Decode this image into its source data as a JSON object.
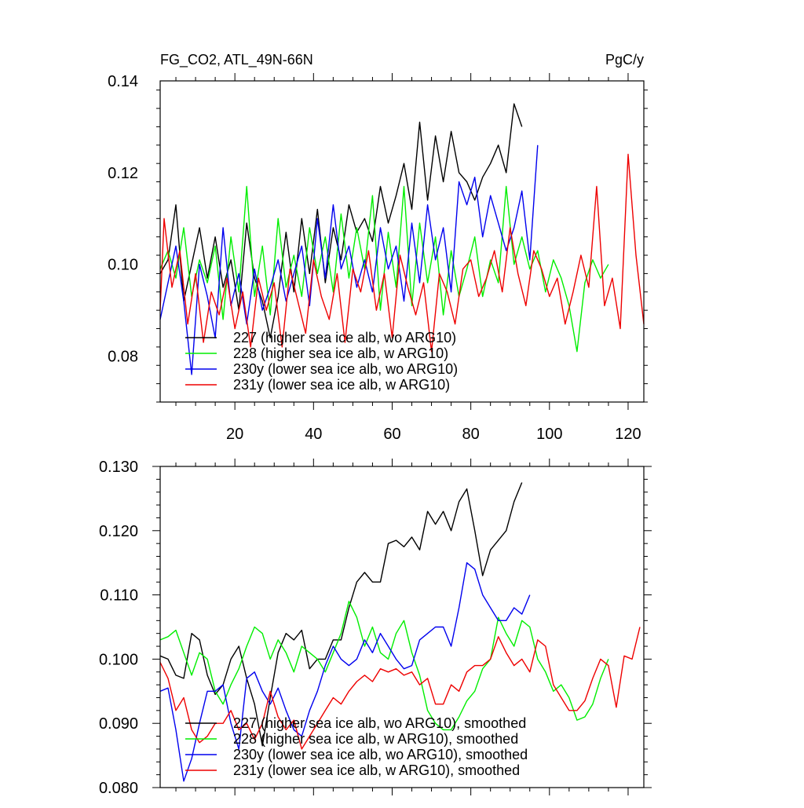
{
  "chart_data": [
    {
      "type": "line",
      "title_left": "FG_CO2, ATL_49N-66N",
      "title_right": "PgC/y",
      "xlim": [
        1,
        124
      ],
      "ylim": [
        0.07,
        0.14
      ],
      "x_ticks": [
        20,
        40,
        60,
        80,
        100,
        120
      ],
      "x_tick_labels": [
        "20",
        "40",
        "60",
        "80",
        "100",
        "120"
      ],
      "y_ticks": [
        0.08,
        0.1,
        0.12,
        0.14
      ],
      "y_tick_labels": [
        "0.08",
        "0.10",
        "0.12",
        "0.14"
      ],
      "legend_position": "lower-left",
      "series": [
        {
          "name": "227 (higher sea ice alb, wo ARG10)",
          "color": "#000000",
          "x": [
            1,
            3,
            5,
            7,
            9,
            11,
            13,
            15,
            17,
            19,
            21,
            23,
            25,
            27,
            29,
            31,
            33,
            35,
            37,
            39,
            41,
            43,
            45,
            47,
            49,
            51,
            53,
            55,
            57,
            59,
            61,
            63,
            65,
            67,
            69,
            71,
            73,
            75,
            77,
            79,
            81,
            83,
            85,
            87,
            89,
            91,
            93
          ],
          "values": [
            0.098,
            0.101,
            0.113,
            0.092,
            0.1,
            0.108,
            0.097,
            0.106,
            0.095,
            0.101,
            0.09,
            0.109,
            0.097,
            0.092,
            0.084,
            0.093,
            0.107,
            0.094,
            0.11,
            0.098,
            0.112,
            0.096,
            0.108,
            0.101,
            0.113,
            0.107,
            0.11,
            0.105,
            0.117,
            0.109,
            0.115,
            0.122,
            0.112,
            0.131,
            0.114,
            0.128,
            0.118,
            0.129,
            0.12,
            0.118,
            0.114,
            0.119,
            0.122,
            0.126,
            0.12,
            0.135,
            0.13
          ]
        },
        {
          "name": "228 (higher sea ice alb, w ARG10)",
          "color": "#00ee00",
          "x": [
            1,
            3,
            5,
            7,
            9,
            11,
            13,
            15,
            17,
            19,
            21,
            23,
            25,
            27,
            29,
            31,
            33,
            35,
            37,
            39,
            41,
            43,
            45,
            47,
            49,
            51,
            53,
            55,
            57,
            59,
            61,
            63,
            65,
            67,
            69,
            71,
            73,
            75,
            77,
            79,
            81,
            83,
            85,
            87,
            89,
            91,
            93,
            95,
            97,
            99,
            101,
            103,
            105,
            107,
            109,
            111,
            113,
            115
          ],
          "values": [
            0.099,
            0.103,
            0.097,
            0.108,
            0.093,
            0.101,
            0.096,
            0.104,
            0.088,
            0.106,
            0.094,
            0.117,
            0.093,
            0.104,
            0.089,
            0.11,
            0.095,
            0.102,
            0.093,
            0.108,
            0.098,
            0.106,
            0.094,
            0.111,
            0.097,
            0.108,
            0.099,
            0.115,
            0.09,
            0.107,
            0.095,
            0.117,
            0.091,
            0.109,
            0.096,
            0.106,
            0.089,
            0.103,
            0.093,
            0.099,
            0.106,
            0.093,
            0.101,
            0.096,
            0.117,
            0.1,
            0.106,
            0.099,
            0.103,
            0.094,
            0.101,
            0.097,
            0.091,
            0.081,
            0.096,
            0.101,
            0.097,
            0.1
          ]
        },
        {
          "name": "230y (lower sea ice alb, wo ARG10)",
          "color": "#0000ee",
          "x": [
            1,
            3,
            5,
            7,
            9,
            11,
            13,
            15,
            17,
            19,
            21,
            23,
            25,
            27,
            29,
            31,
            33,
            35,
            37,
            39,
            41,
            43,
            45,
            47,
            49,
            51,
            53,
            55,
            57,
            59,
            61,
            63,
            65,
            67,
            69,
            71,
            73,
            75,
            77,
            79,
            81,
            83,
            85,
            87,
            89,
            91,
            93,
            95,
            97
          ],
          "values": [
            0.088,
            0.096,
            0.104,
            0.092,
            0.076,
            0.1,
            0.093,
            0.084,
            0.108,
            0.091,
            0.098,
            0.087,
            0.099,
            0.09,
            0.095,
            0.101,
            0.092,
            0.098,
            0.104,
            0.091,
            0.11,
            0.097,
            0.113,
            0.099,
            0.104,
            0.095,
            0.101,
            0.094,
            0.108,
            0.099,
            0.104,
            0.092,
            0.109,
            0.096,
            0.113,
            0.101,
            0.108,
            0.094,
            0.118,
            0.113,
            0.119,
            0.106,
            0.115,
            0.109,
            0.103,
            0.108,
            0.116,
            0.101,
            0.126
          ]
        },
        {
          "name": "231y (lower sea ice alb, w ARG10)",
          "color": "#ee0000",
          "x": [
            1,
            2,
            4,
            6,
            8,
            10,
            12,
            14,
            16,
            18,
            20,
            22,
            24,
            26,
            28,
            30,
            32,
            34,
            36,
            38,
            40,
            42,
            44,
            46,
            48,
            50,
            52,
            54,
            56,
            58,
            60,
            62,
            64,
            66,
            68,
            70,
            72,
            74,
            76,
            78,
            80,
            82,
            84,
            86,
            88,
            90,
            92,
            94,
            96,
            98,
            100,
            102,
            104,
            106,
            108,
            110,
            112,
            114,
            116,
            118,
            120,
            122,
            124
          ],
          "values": [
            0.09,
            0.11,
            0.095,
            0.103,
            0.087,
            0.098,
            0.083,
            0.094,
            0.089,
            0.097,
            0.086,
            0.094,
            0.082,
            0.097,
            0.09,
            0.096,
            0.082,
            0.099,
            0.092,
            0.085,
            0.101,
            0.093,
            0.088,
            0.098,
            0.083,
            0.099,
            0.094,
            0.103,
            0.09,
            0.098,
            0.084,
            0.102,
            0.095,
            0.089,
            0.096,
            0.081,
            0.098,
            0.094,
            0.087,
            0.099,
            0.101,
            0.093,
            0.097,
            0.103,
            0.094,
            0.108,
            0.098,
            0.091,
            0.103,
            0.099,
            0.093,
            0.097,
            0.087,
            0.094,
            0.102,
            0.095,
            0.117,
            0.091,
            0.097,
            0.086,
            0.124,
            0.102,
            0.087
          ]
        }
      ]
    },
    {
      "type": "line",
      "xlim": [
        1,
        124
      ],
      "ylim": [
        0.08,
        0.13
      ],
      "x_ticks": [
        20,
        40,
        60,
        80,
        100,
        120
      ],
      "y_ticks": [
        0.08,
        0.09,
        0.1,
        0.11,
        0.12,
        0.13
      ],
      "y_tick_labels": [
        "0.080",
        "0.090",
        "0.100",
        "0.110",
        "0.120",
        "0.130"
      ],
      "legend_position": "lower-left",
      "series": [
        {
          "name": "227 (higher sea ice alb, wo ARG10), smoothed",
          "color": "#000000",
          "x": [
            1,
            3,
            5,
            7,
            9,
            11,
            13,
            15,
            17,
            19,
            21,
            23,
            25,
            27,
            29,
            31,
            33,
            35,
            37,
            39,
            41,
            43,
            45,
            47,
            49,
            51,
            53,
            55,
            57,
            59,
            61,
            63,
            65,
            67,
            69,
            71,
            73,
            75,
            77,
            79,
            81,
            83,
            85,
            87,
            89,
            91,
            93
          ],
          "values": [
            0.1005,
            0.1,
            0.0975,
            0.097,
            0.104,
            0.103,
            0.0975,
            0.0945,
            0.096,
            0.1,
            0.102,
            0.097,
            0.093,
            0.0865,
            0.094,
            0.101,
            0.104,
            0.103,
            0.1045,
            0.0985,
            0.1,
            0.1,
            0.103,
            0.103,
            0.108,
            0.112,
            0.1135,
            0.112,
            0.112,
            0.118,
            0.1185,
            0.1175,
            0.119,
            0.117,
            0.123,
            0.121,
            0.123,
            0.12,
            0.1245,
            0.1265,
            0.12,
            0.113,
            0.117,
            0.1185,
            0.12,
            0.1245,
            0.1275
          ]
        },
        {
          "name": "228 (higher sea ice alb, w ARG10), smoothed",
          "color": "#00ee00",
          "x": [
            1,
            3,
            5,
            7,
            9,
            11,
            13,
            15,
            17,
            19,
            21,
            23,
            25,
            27,
            29,
            31,
            33,
            35,
            37,
            39,
            41,
            43,
            45,
            47,
            49,
            51,
            53,
            55,
            57,
            59,
            61,
            63,
            65,
            67,
            69,
            71,
            73,
            75,
            77,
            79,
            81,
            83,
            85,
            87,
            89,
            91,
            93,
            95,
            97,
            99,
            101,
            103,
            105,
            107,
            109,
            111,
            113,
            115
          ],
          "values": [
            0.103,
            0.1035,
            0.1045,
            0.101,
            0.0975,
            0.101,
            0.1,
            0.095,
            0.093,
            0.096,
            0.0985,
            0.102,
            0.105,
            0.104,
            0.1,
            0.103,
            0.101,
            0.098,
            0.102,
            0.101,
            0.1,
            0.098,
            0.101,
            0.104,
            0.109,
            0.1065,
            0.102,
            0.105,
            0.101,
            0.1,
            0.104,
            0.106,
            0.101,
            0.0975,
            0.092,
            0.09,
            0.089,
            0.089,
            0.091,
            0.0935,
            0.095,
            0.0985,
            0.1,
            0.1065,
            0.104,
            0.102,
            0.106,
            0.105,
            0.1,
            0.098,
            0.095,
            0.096,
            0.094,
            0.0905,
            0.091,
            0.093,
            0.097,
            0.1
          ]
        },
        {
          "name": "230y (lower sea ice alb, wo ARG10), smoothed",
          "color": "#0000ee",
          "x": [
            1,
            3,
            5,
            7,
            9,
            11,
            13,
            15,
            17,
            19,
            21,
            23,
            25,
            27,
            29,
            31,
            33,
            35,
            37,
            39,
            41,
            43,
            45,
            47,
            49,
            51,
            53,
            55,
            57,
            59,
            61,
            63,
            65,
            67,
            69,
            71,
            73,
            75,
            77,
            79,
            81,
            83,
            85,
            87,
            89,
            91,
            93,
            95
          ],
          "values": [
            0.095,
            0.0955,
            0.089,
            0.081,
            0.0845,
            0.09,
            0.095,
            0.095,
            0.096,
            0.09,
            0.086,
            0.097,
            0.098,
            0.095,
            0.093,
            0.0955,
            0.092,
            0.089,
            0.088,
            0.092,
            0.095,
            0.099,
            0.102,
            0.1,
            0.099,
            0.1,
            0.103,
            0.101,
            0.104,
            0.102,
            0.1,
            0.0985,
            0.099,
            0.103,
            0.104,
            0.105,
            0.105,
            0.102,
            0.108,
            0.115,
            0.114,
            0.11,
            0.108,
            0.106,
            0.106,
            0.108,
            0.107,
            0.11
          ]
        },
        {
          "name": "231y (lower sea ice alb, w ARG10), smoothed",
          "color": "#ee0000",
          "x": [
            1,
            3,
            5,
            7,
            9,
            11,
            13,
            15,
            17,
            19,
            21,
            23,
            25,
            27,
            29,
            31,
            33,
            35,
            37,
            39,
            41,
            43,
            45,
            47,
            49,
            51,
            53,
            55,
            57,
            59,
            61,
            63,
            65,
            67,
            69,
            71,
            73,
            75,
            77,
            79,
            81,
            83,
            85,
            87,
            89,
            91,
            93,
            95,
            97,
            99,
            101,
            103,
            105,
            107,
            109,
            111,
            113,
            115,
            117,
            119,
            121,
            123
          ],
          "values": [
            0.0995,
            0.097,
            0.092,
            0.094,
            0.089,
            0.087,
            0.088,
            0.09,
            0.09,
            0.092,
            0.089,
            0.09,
            0.0875,
            0.09,
            0.095,
            0.091,
            0.089,
            0.0905,
            0.086,
            0.088,
            0.09,
            0.092,
            0.094,
            0.093,
            0.095,
            0.0965,
            0.0975,
            0.0965,
            0.0985,
            0.098,
            0.0985,
            0.0975,
            0.098,
            0.096,
            0.097,
            0.093,
            0.093,
            0.096,
            0.095,
            0.098,
            0.099,
            0.099,
            0.1,
            0.1035,
            0.101,
            0.099,
            0.1,
            0.098,
            0.103,
            0.102,
            0.096,
            0.094,
            0.092,
            0.092,
            0.0935,
            0.097,
            0.1,
            0.099,
            0.0925,
            0.1005,
            0.1,
            0.105
          ]
        }
      ]
    }
  ]
}
